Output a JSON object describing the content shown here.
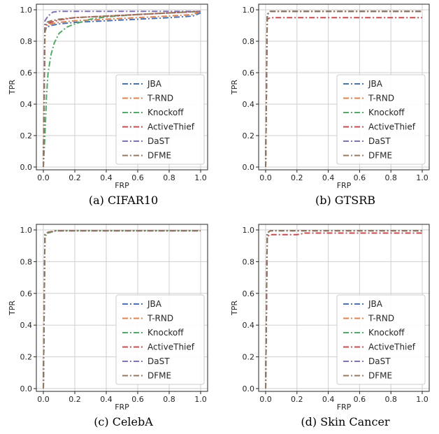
{
  "chart_data": [
    {
      "type": "line",
      "caption": "(a) CIFAR10",
      "xlabel": "FRP",
      "ylabel": "TPR",
      "xlim": [
        0,
        1
      ],
      "ylim": [
        0,
        1
      ],
      "xticks": [
        "0.0",
        "0.2",
        "0.4",
        "0.6",
        "0.8",
        "1.0"
      ],
      "yticks": [
        "0.0",
        "0.2",
        "0.4",
        "0.6",
        "0.8",
        "1.0"
      ],
      "grid": true,
      "legend": "lower-right",
      "series": [
        {
          "name": "JBA",
          "color": "#4c72b0",
          "x": [
            0,
            0.01,
            0.02,
            0.05,
            0.1,
            0.2,
            0.4,
            0.6,
            0.8,
            0.95,
            1.0
          ],
          "y": [
            0,
            0.86,
            0.89,
            0.9,
            0.91,
            0.92,
            0.93,
            0.94,
            0.95,
            0.96,
            0.98
          ]
        },
        {
          "name": "T-RND",
          "color": "#dd8452",
          "x": [
            0,
            0.01,
            0.02,
            0.05,
            0.1,
            0.2,
            0.4,
            0.6,
            0.8,
            0.95,
            1.0
          ],
          "y": [
            0,
            0.87,
            0.9,
            0.91,
            0.92,
            0.93,
            0.94,
            0.95,
            0.96,
            0.97,
            0.99
          ]
        },
        {
          "name": "Knockoff",
          "color": "#55a868",
          "x": [
            0,
            0.01,
            0.02,
            0.03,
            0.05,
            0.07,
            0.1,
            0.15,
            0.2,
            0.3,
            0.4,
            0.6,
            0.8,
            1.0
          ],
          "y": [
            0,
            0.2,
            0.45,
            0.6,
            0.72,
            0.79,
            0.85,
            0.89,
            0.91,
            0.94,
            0.955,
            0.97,
            0.98,
            0.99
          ]
        },
        {
          "name": "ActiveThief",
          "color": "#c44e52",
          "x": [
            0,
            0.01,
            0.02,
            0.05,
            0.1,
            0.2,
            0.4,
            0.6,
            0.8,
            1.0
          ],
          "y": [
            0,
            0.88,
            0.91,
            0.92,
            0.935,
            0.95,
            0.96,
            0.97,
            0.98,
            0.99
          ]
        },
        {
          "name": "DaST",
          "color": "#8172b3",
          "x": [
            0,
            0.01,
            0.03,
            0.06,
            0.1,
            0.4,
            1.0
          ],
          "y": [
            0,
            0.93,
            0.96,
            0.985,
            0.99,
            0.99,
            0.99
          ]
        },
        {
          "name": "DFME",
          "color": "#937860",
          "x": [
            0,
            0.01,
            0.02,
            0.05,
            0.1,
            0.2,
            0.4,
            0.6,
            0.8,
            1.0
          ],
          "y": [
            0,
            0.89,
            0.92,
            0.93,
            0.94,
            0.95,
            0.96,
            0.97,
            0.98,
            0.99
          ]
        }
      ]
    },
    {
      "type": "line",
      "caption": "(b) GTSRB",
      "xlabel": "FRP",
      "ylabel": "TPR",
      "xlim": [
        0,
        1
      ],
      "ylim": [
        0,
        1
      ],
      "xticks": [
        "0.0",
        "0.2",
        "0.4",
        "0.6",
        "0.8",
        "1.0"
      ],
      "yticks": [
        "0.0",
        "0.2",
        "0.4",
        "0.6",
        "0.8",
        "1.0"
      ],
      "grid": true,
      "legend": "lower-right",
      "series": [
        {
          "name": "JBA",
          "color": "#4c72b0",
          "x": [
            0,
            0.01,
            0.03,
            1.0
          ],
          "y": [
            0,
            0.97,
            0.99,
            0.99
          ]
        },
        {
          "name": "T-RND",
          "color": "#dd8452",
          "x": [
            0,
            0.01,
            0.03,
            1.0
          ],
          "y": [
            0,
            0.97,
            0.99,
            0.99
          ]
        },
        {
          "name": "Knockoff",
          "color": "#55a868",
          "x": [
            0,
            0.01,
            0.03,
            1.0
          ],
          "y": [
            0,
            0.97,
            0.99,
            0.99
          ]
        },
        {
          "name": "ActiveThief",
          "color": "#c44e52",
          "x": [
            0,
            0.01,
            0.03,
            1.0
          ],
          "y": [
            0,
            0.94,
            0.95,
            0.95
          ]
        },
        {
          "name": "DaST",
          "color": "#8172b3",
          "x": [
            0,
            0.01,
            0.03,
            1.0
          ],
          "y": [
            0,
            0.97,
            0.99,
            0.99
          ]
        },
        {
          "name": "DFME",
          "color": "#937860",
          "x": [
            0,
            0.01,
            0.03,
            1.0
          ],
          "y": [
            0,
            0.97,
            0.99,
            0.99
          ]
        }
      ]
    },
    {
      "type": "line",
      "caption": "(c) CelebA",
      "xlabel": "FRP",
      "ylabel": "TPR",
      "xlim": [
        0,
        1
      ],
      "ylim": [
        0,
        1
      ],
      "xticks": [
        "0.0",
        "0.2",
        "0.4",
        "0.6",
        "0.8",
        "1.0"
      ],
      "yticks": [
        "0.0",
        "0.2",
        "0.4",
        "0.6",
        "0.8",
        "1.0"
      ],
      "grid": true,
      "legend": "lower-right",
      "series": [
        {
          "name": "JBA",
          "color": "#4c72b0",
          "x": [
            0,
            0.01,
            0.03,
            0.08,
            1.0
          ],
          "y": [
            0,
            0.97,
            0.985,
            0.995,
            0.995
          ]
        },
        {
          "name": "T-RND",
          "color": "#dd8452",
          "x": [
            0,
            0.01,
            0.03,
            0.08,
            1.0
          ],
          "y": [
            0,
            0.97,
            0.985,
            0.995,
            0.995
          ]
        },
        {
          "name": "Knockoff",
          "color": "#55a868",
          "x": [
            0,
            0.01,
            0.03,
            0.08,
            1.0
          ],
          "y": [
            0,
            0.96,
            0.98,
            0.995,
            0.995
          ]
        },
        {
          "name": "ActiveThief",
          "color": "#c44e52",
          "x": [
            0,
            0.01,
            0.03,
            0.08,
            1.0
          ],
          "y": [
            0,
            0.97,
            0.985,
            0.995,
            0.995
          ]
        },
        {
          "name": "DaST",
          "color": "#8172b3",
          "x": [
            0,
            0.01,
            0.03,
            0.08,
            1.0
          ],
          "y": [
            0,
            0.97,
            0.985,
            0.995,
            0.995
          ]
        },
        {
          "name": "DFME",
          "color": "#937860",
          "x": [
            0,
            0.01,
            0.03,
            0.08,
            1.0
          ],
          "y": [
            0,
            0.97,
            0.985,
            0.995,
            0.995
          ]
        }
      ]
    },
    {
      "type": "line",
      "caption": "(d) Skin Cancer",
      "xlabel": "FRP",
      "ylabel": "TPR",
      "xlim": [
        0,
        1
      ],
      "ylim": [
        0,
        1
      ],
      "xticks": [
        "0.0",
        "0.2",
        "0.4",
        "0.6",
        "0.8",
        "1.0"
      ],
      "yticks": [
        "0.0",
        "0.2",
        "0.4",
        "0.6",
        "0.8",
        "1.0"
      ],
      "grid": true,
      "legend": "lower-right",
      "series": [
        {
          "name": "JBA",
          "color": "#4c72b0",
          "x": [
            0,
            0.01,
            0.03,
            1.0
          ],
          "y": [
            0,
            0.98,
            0.995,
            0.995
          ]
        },
        {
          "name": "T-RND",
          "color": "#dd8452",
          "x": [
            0,
            0.01,
            0.03,
            1.0
          ],
          "y": [
            0,
            0.98,
            0.995,
            0.995
          ]
        },
        {
          "name": "Knockoff",
          "color": "#55a868",
          "x": [
            0,
            0.01,
            0.03,
            1.0
          ],
          "y": [
            0,
            0.98,
            0.995,
            0.995
          ]
        },
        {
          "name": "ActiveThief",
          "color": "#c44e52",
          "x": [
            0,
            0.01,
            0.03,
            0.2,
            0.25,
            1.0
          ],
          "y": [
            0,
            0.96,
            0.97,
            0.97,
            0.98,
            0.98
          ]
        },
        {
          "name": "DaST",
          "color": "#8172b3",
          "x": [
            0,
            0.01,
            0.03,
            1.0
          ],
          "y": [
            0,
            0.98,
            0.995,
            0.995
          ]
        },
        {
          "name": "DFME",
          "color": "#937860",
          "x": [
            0,
            0.01,
            0.03,
            1.0
          ],
          "y": [
            0,
            0.98,
            0.995,
            0.995
          ]
        }
      ]
    }
  ]
}
